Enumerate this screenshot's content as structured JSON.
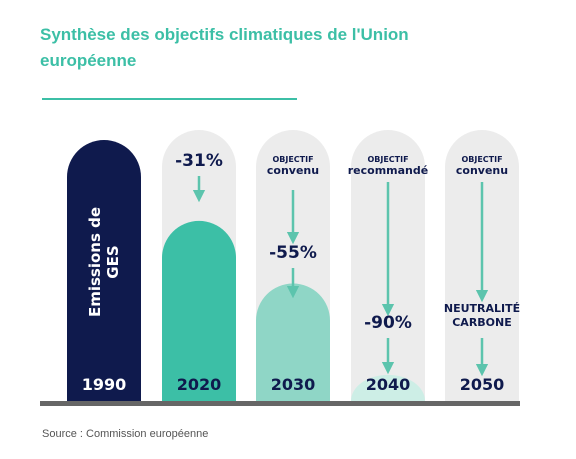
{
  "title": "Synthèse des objectifs climatiques de l'Union européenne",
  "source": "Source : Commission européenne",
  "colors": {
    "title": "#3cbfa6",
    "bar_1990": "#0f1a4d",
    "bar_2020": "#3cbfa6",
    "bar_2030": "#8fd6c6",
    "bar_2040": "#cdeee6",
    "arrow": "#5cc4ad",
    "background_column": "#ececec",
    "baseline": "#666666",
    "dark_text": "#0f1a4d"
  },
  "chart_data": {
    "type": "bar",
    "categories": [
      "1990",
      "2020",
      "2030",
      "2040",
      "2050"
    ],
    "values": [
      100,
      69,
      45,
      10,
      0
    ],
    "ylim": [
      0,
      100
    ],
    "bar_label_1990": "Emissions de GES",
    "annotations": [
      {
        "category": "2020",
        "tag": "",
        "value": "-31%"
      },
      {
        "category": "2030",
        "tag": "objectif convenu",
        "value": "-55%"
      },
      {
        "category": "2040",
        "tag": "objectif recommandé",
        "value": "-90%"
      },
      {
        "category": "2050",
        "tag": "objectif convenu",
        "value": "Neutralité carbone"
      }
    ]
  }
}
